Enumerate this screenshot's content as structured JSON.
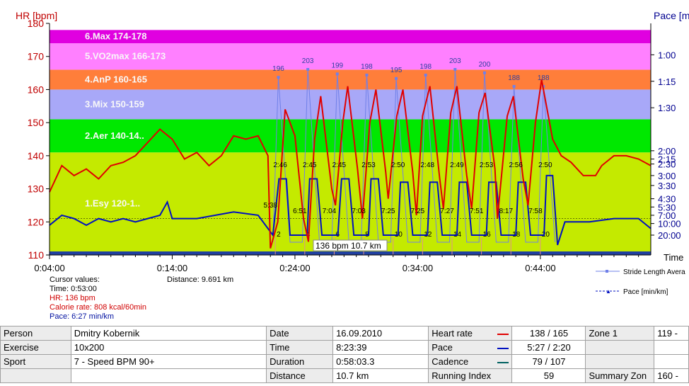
{
  "chart_data": {
    "type": "line",
    "left_axis": {
      "label": "HR [bpm]",
      "min": 110,
      "max": 180,
      "ticks": [
        "110",
        "120",
        "130",
        "140",
        "150",
        "160",
        "170",
        "180"
      ]
    },
    "right_axis": {
      "label": "Pace [min/km]",
      "ticks": [
        "1:00",
        "1:15",
        "1:30",
        "2:00",
        "2:15",
        "2:30",
        "3:00",
        "3:30",
        "4:30",
        "5:30",
        "7:00",
        "10:00",
        "20:00"
      ]
    },
    "x_axis": {
      "label": "Time",
      "start_min": 4,
      "end_min": 53,
      "ticks": [
        "0:04:00",
        "0:14:00",
        "0:24:00",
        "0:34:00",
        "0:44:00"
      ]
    },
    "zones": [
      {
        "name": "1.Esy",
        "range": "120-1..",
        "from": 110,
        "to": 141,
        "color": "#c4ea00"
      },
      {
        "name": "2.Aer",
        "range": "140-14..",
        "from": 141,
        "to": 151,
        "color": "#00e800"
      },
      {
        "name": "3.Mix",
        "range": "150-159",
        "from": 151,
        "to": 160,
        "color": "#a8a8f8"
      },
      {
        "name": "4.AnP",
        "range": "160-165",
        "from": 160,
        "to": 166,
        "color": "#ff7e3a"
      },
      {
        "name": "5.VO2max",
        "range": "166-173",
        "from": 166,
        "to": 174,
        "color": "#ff80ff"
      },
      {
        "name": "6.Max",
        "range": "174-178",
        "from": 174,
        "to": 178,
        "color": "#e000e0"
      }
    ],
    "series": [
      {
        "name": "Heart rate",
        "color": "#e00000",
        "points": [
          [
            4,
            129
          ],
          [
            5,
            137
          ],
          [
            6,
            134
          ],
          [
            7,
            136
          ],
          [
            8,
            133
          ],
          [
            9,
            137
          ],
          [
            10,
            138
          ],
          [
            11,
            140
          ],
          [
            12,
            144
          ],
          [
            13,
            148
          ],
          [
            14,
            145
          ],
          [
            15,
            139
          ],
          [
            16,
            141
          ],
          [
            17,
            137
          ],
          [
            18,
            140
          ],
          [
            19,
            146
          ],
          [
            20,
            145
          ],
          [
            21,
            146
          ],
          [
            21.8,
            140
          ],
          [
            22,
            112
          ],
          [
            22.6,
            120
          ],
          [
            23.2,
            154
          ],
          [
            24,
            146
          ],
          [
            24.7,
            121
          ],
          [
            25.1,
            114
          ],
          [
            25.6,
            145
          ],
          [
            26.1,
            158
          ],
          [
            27,
            130
          ],
          [
            27.3,
            125
          ],
          [
            27.9,
            150
          ],
          [
            28.3,
            161
          ],
          [
            29.1,
            136
          ],
          [
            29.5,
            121
          ],
          [
            30.1,
            150
          ],
          [
            30.6,
            160
          ],
          [
            31.4,
            135
          ],
          [
            31.6,
            127
          ],
          [
            32.3,
            152
          ],
          [
            32.8,
            160
          ],
          [
            33.6,
            135
          ],
          [
            33.9,
            122
          ],
          [
            34.4,
            152
          ],
          [
            35,
            161
          ],
          [
            35.8,
            133
          ],
          [
            36.1,
            124
          ],
          [
            36.7,
            153
          ],
          [
            37.2,
            161
          ],
          [
            38,
            134
          ],
          [
            38.4,
            124
          ],
          [
            39,
            153
          ],
          [
            39.5,
            159
          ],
          [
            40.3,
            136
          ],
          [
            40.5,
            121
          ],
          [
            41.3,
            152
          ],
          [
            41.8,
            158
          ],
          [
            42.6,
            133
          ],
          [
            43,
            125
          ],
          [
            43.6,
            150
          ],
          [
            44.1,
            163
          ],
          [
            45,
            145
          ],
          [
            45.7,
            140
          ],
          [
            46.5,
            138
          ],
          [
            47.5,
            134
          ],
          [
            48.5,
            134
          ],
          [
            49,
            137
          ],
          [
            50,
            140
          ],
          [
            51,
            140
          ],
          [
            52,
            139
          ],
          [
            53,
            137
          ]
        ]
      },
      {
        "name": "Pace",
        "color": "#0010c0",
        "points": [
          [
            4,
            119
          ],
          [
            5,
            122
          ],
          [
            6,
            121
          ],
          [
            7,
            119
          ],
          [
            8,
            121
          ],
          [
            9,
            120
          ],
          [
            10,
            121
          ],
          [
            11,
            120
          ],
          [
            12,
            121
          ],
          [
            13,
            122
          ],
          [
            13.6,
            126
          ],
          [
            14,
            121
          ],
          [
            16,
            121
          ],
          [
            19,
            123
          ],
          [
            21,
            122
          ],
          [
            21.8,
            118
          ],
          [
            22.2,
            116
          ],
          [
            22.7,
            133
          ],
          [
            23.3,
            133
          ],
          [
            23.6,
            116
          ],
          [
            25,
            116
          ],
          [
            25.2,
            133
          ],
          [
            25.8,
            133
          ],
          [
            26.2,
            116
          ],
          [
            27.5,
            116
          ],
          [
            27.8,
            133
          ],
          [
            28.4,
            133
          ],
          [
            28.8,
            116
          ],
          [
            30,
            116
          ],
          [
            30.2,
            133
          ],
          [
            30.8,
            133
          ],
          [
            31.2,
            116
          ],
          [
            32.4,
            116
          ],
          [
            32.6,
            132
          ],
          [
            33.2,
            132
          ],
          [
            33.6,
            116
          ],
          [
            34.8,
            116
          ],
          [
            35,
            132
          ],
          [
            35.6,
            132
          ],
          [
            36,
            116
          ],
          [
            37.2,
            116
          ],
          [
            37.4,
            132
          ],
          [
            38,
            132
          ],
          [
            38.4,
            116
          ],
          [
            39.6,
            116
          ],
          [
            39.8,
            132
          ],
          [
            40.4,
            132
          ],
          [
            40.8,
            116
          ],
          [
            42,
            116
          ],
          [
            42.2,
            132
          ],
          [
            42.8,
            132
          ],
          [
            43.2,
            116
          ],
          [
            44.3,
            116
          ],
          [
            44.5,
            134
          ],
          [
            45,
            134
          ],
          [
            45.4,
            113
          ],
          [
            46,
            120
          ],
          [
            48,
            120
          ],
          [
            50,
            121
          ],
          [
            52,
            121
          ],
          [
            53,
            118
          ]
        ]
      },
      {
        "name": "Stride Length Average",
        "color": "#7080e8",
        "labels": [
          "196",
          "203",
          "199",
          "198",
          "195",
          "198",
          "203",
          "200",
          "188",
          "188"
        ]
      }
    ],
    "lap_labels_top": [
      "2:46",
      "2:45",
      "2:45",
      "2:53",
      "2:50",
      "2:48",
      "2:49",
      "2:53",
      "2:56",
      "2:50"
    ],
    "lap_labels_bottom": [
      "5:38",
      "6:51",
      "7:04",
      "7:03",
      "7:25",
      "7:25",
      "7:27",
      "7:51",
      "8:17",
      "7:58"
    ],
    "lap_numbers": [
      "2",
      "4",
      "6",
      "8",
      "10",
      "12",
      "14",
      "16",
      "18",
      "20"
    ],
    "cursor_tooltip": "136 bpm 10.7 km"
  },
  "cursor": {
    "title": "Cursor values:",
    "time": "Time: 0:53:00",
    "hr": "HR: 136 bpm",
    "calorie": "Calorie rate: 808 kcal/60min",
    "pace": "Pace: 6:27 min/km",
    "distance": "Distance: 9.691 km"
  },
  "legend": {
    "stride": "Stride Length Avera",
    "pace": "Pace [min/km]"
  },
  "summary": {
    "person_label": "Person",
    "person": "Dmitry Kobernik",
    "exercise_label": "Exercise",
    "exercise": "10x200",
    "sport_label": "Sport",
    "sport": "7 - Speed BPM 90+",
    "date_label": "Date",
    "date": "16.09.2010",
    "time_label": "Time",
    "time": "8:23:39",
    "duration_label": "Duration",
    "duration": "0:58:03.3",
    "distance_label": "Distance",
    "distance": "10.7 km",
    "hr_label": "Heart rate",
    "hr": "138 / 165",
    "pace_label": "Pace",
    "pace": "5:27 / 2:20",
    "cadence_label": "Cadence",
    "cadence": "79 / 107",
    "ri_label": "Running Index",
    "ri": "59",
    "zone1_label": "Zone 1",
    "zone1": "119 -",
    "summary_zone_label": "Summary Zon",
    "summary_zone": "160 -"
  },
  "colors": {
    "hr": "#e00000",
    "pace": "#0010c0",
    "cadence": "#006060",
    "axis_left": "#c00000",
    "axis_right": "#000090"
  }
}
